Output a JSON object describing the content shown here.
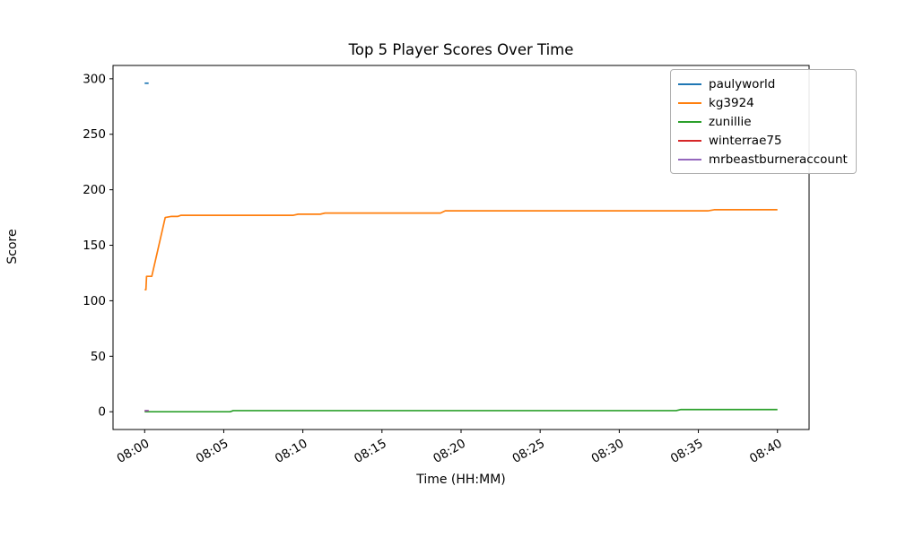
{
  "chart_data": {
    "type": "line",
    "title": "Top 5 Player Scores Over Time",
    "xlabel": "Time (HH:MM)",
    "ylabel": "Score",
    "grid": false,
    "legend_position": "upper right",
    "x_unit": "minutes after 08:00",
    "xlim": [
      -2,
      42
    ],
    "ylim": [
      -16,
      312
    ],
    "xticks": {
      "values": [
        0,
        5,
        10,
        15,
        20,
        25,
        30,
        35,
        40
      ],
      "labels": [
        "08:00",
        "08:05",
        "08:10",
        "08:15",
        "08:20",
        "08:25",
        "08:30",
        "08:35",
        "08:40"
      ],
      "rotation_deg": 30
    },
    "yticks": [
      0,
      50,
      100,
      150,
      200,
      250,
      300
    ],
    "series": [
      {
        "name": "paulyworld",
        "color": "#1f77b4",
        "points": [
          [
            0,
            296
          ],
          [
            0.25,
            296
          ]
        ]
      },
      {
        "name": "kg3924",
        "color": "#ff7f0e",
        "points": [
          [
            0,
            110
          ],
          [
            0.08,
            110
          ],
          [
            0.12,
            122
          ],
          [
            0.45,
            122
          ],
          [
            1.3,
            175
          ],
          [
            1.7,
            176
          ],
          [
            2.1,
            176
          ],
          [
            2.3,
            177
          ],
          [
            9.4,
            177
          ],
          [
            9.7,
            178
          ],
          [
            11.1,
            178
          ],
          [
            11.4,
            179
          ],
          [
            18.7,
            179
          ],
          [
            19.0,
            181
          ],
          [
            35.6,
            181
          ],
          [
            36.0,
            182
          ],
          [
            40,
            182
          ]
        ]
      },
      {
        "name": "zunillie",
        "color": "#2ca02c",
        "points": [
          [
            0,
            0
          ],
          [
            5.4,
            0
          ],
          [
            5.6,
            1
          ],
          [
            33.6,
            1
          ],
          [
            33.9,
            2
          ],
          [
            40,
            2
          ]
        ]
      },
      {
        "name": "winterrae75",
        "color": "#d62728",
        "points": [
          [
            0,
            1
          ],
          [
            0.25,
            1
          ]
        ]
      },
      {
        "name": "mrbeastburneraccount",
        "color": "#9467bd",
        "points": [
          [
            0,
            1
          ],
          [
            0.25,
            1
          ]
        ]
      }
    ]
  }
}
